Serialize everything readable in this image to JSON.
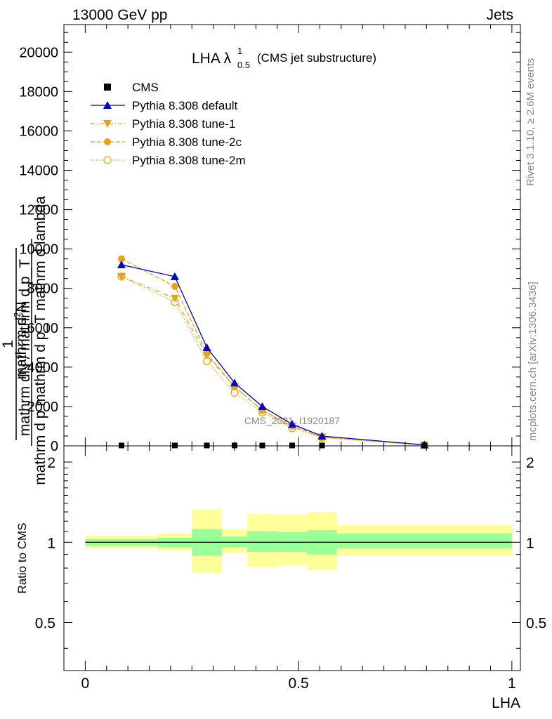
{
  "header": {
    "left": "13000 GeV pp",
    "right": "Jets"
  },
  "chart_data": [
    {
      "type": "line",
      "title": "LHA λ",
      "title_sup": "1",
      "title_sub": "0.5",
      "title_suffix": "(CMS jet substructure)",
      "xlabel": "LHA",
      "ylabel": {
        "numerator": "mathrm d²N",
        "numerator_text": "mathrm d",
        "numerator_sup": "2",
        "numerator_tail": "N",
        "denominator": "mathrm d p mathrm d p_T mathrm d lambda",
        "prefactor_num": "1",
        "prefactor_den": "mathrm dN / mathrm d p_T"
      },
      "xlim": [
        -0.05,
        1.02
      ],
      "ylim": [
        0,
        21400
      ],
      "yticks": [
        0,
        2000,
        4000,
        6000,
        8000,
        10000,
        12000,
        14000,
        16000,
        18000,
        20000
      ],
      "ytick_labels": [
        "0",
        "2000",
        "4000",
        "6000",
        "8000",
        "10000",
        "12000",
        "14000",
        "16000",
        "18000",
        "20000"
      ],
      "x": [
        0.085,
        0.21,
        0.285,
        0.35,
        0.415,
        0.485,
        0.555,
        0.795
      ],
      "series": [
        {
          "name": "CMS",
          "color": "#000000",
          "marker": "square",
          "dash": "none",
          "values": [
            20,
            20,
            20,
            20,
            20,
            20,
            20,
            20
          ]
        },
        {
          "name": "Pythia 8.308 default",
          "color": "#0000cc",
          "marker": "triangle-up",
          "dash": "solid",
          "values": [
            9200,
            8600,
            5000,
            3200,
            2000,
            1100,
            500,
            50
          ]
        },
        {
          "name": "Pythia 8.308 tune-1",
          "color": "#e8a317",
          "marker": "triangle-down",
          "dash": "dashdot",
          "values": [
            8600,
            7500,
            4600,
            3000,
            1800,
            1000,
            450,
            40
          ]
        },
        {
          "name": "Pythia 8.308 tune-2c",
          "color": "#e8a317",
          "marker": "circle",
          "dash": "dashed",
          "values": [
            9500,
            8100,
            4700,
            3000,
            1800,
            1000,
            450,
            40
          ]
        },
        {
          "name": "Pythia 8.308 tune-2m",
          "color": "#e8a317",
          "marker": "circle-open",
          "dash": "dotted",
          "values": [
            8600,
            7300,
            4300,
            2700,
            1700,
            900,
            420,
            40
          ]
        }
      ],
      "watermark": "CMS_2021_I1920187",
      "side_label_top": "Rivet 3.1.10, ≥ 2.6M events",
      "side_label_bottom": "mcplots.cern.ch [arXiv:1306.3436]"
    },
    {
      "type": "area",
      "ylabel": "Ratio to CMS",
      "xlabel": "LHA",
      "xlim": [
        -0.05,
        1.02
      ],
      "ylim": [
        0.33,
        2.3
      ],
      "log": true,
      "yticks": [
        0.5,
        1,
        2
      ],
      "ytick_labels": [
        "0.5",
        "1",
        "2"
      ],
      "xticks": [
        0,
        0.5,
        1
      ],
      "xtick_labels": [
        "0",
        "0.5",
        "1"
      ],
      "bins": [
        {
          "lo": 0.0,
          "hi": 0.17,
          "inner": [
            0.97,
            1.03
          ],
          "outer": [
            0.95,
            1.06
          ]
        },
        {
          "lo": 0.17,
          "hi": 0.25,
          "inner": [
            0.96,
            1.04
          ],
          "outer": [
            0.93,
            1.08
          ]
        },
        {
          "lo": 0.25,
          "hi": 0.32,
          "inner": [
            0.89,
            1.12
          ],
          "outer": [
            0.77,
            1.33
          ]
        },
        {
          "lo": 0.32,
          "hi": 0.38,
          "inner": [
            0.96,
            1.05
          ],
          "outer": [
            0.91,
            1.12
          ]
        },
        {
          "lo": 0.38,
          "hi": 0.45,
          "inner": [
            0.92,
            1.1
          ],
          "outer": [
            0.81,
            1.28
          ]
        },
        {
          "lo": 0.45,
          "hi": 0.52,
          "inner": [
            0.92,
            1.09
          ],
          "outer": [
            0.82,
            1.27
          ]
        },
        {
          "lo": 0.52,
          "hi": 0.59,
          "inner": [
            0.9,
            1.11
          ],
          "outer": [
            0.79,
            1.3
          ]
        },
        {
          "lo": 0.59,
          "hi": 1.0,
          "inner": [
            0.95,
            1.08
          ],
          "outer": [
            0.89,
            1.16
          ]
        }
      ],
      "colors": {
        "inner": "#99ff99",
        "outer": "#ffff99",
        "reference": "#000000"
      }
    }
  ]
}
